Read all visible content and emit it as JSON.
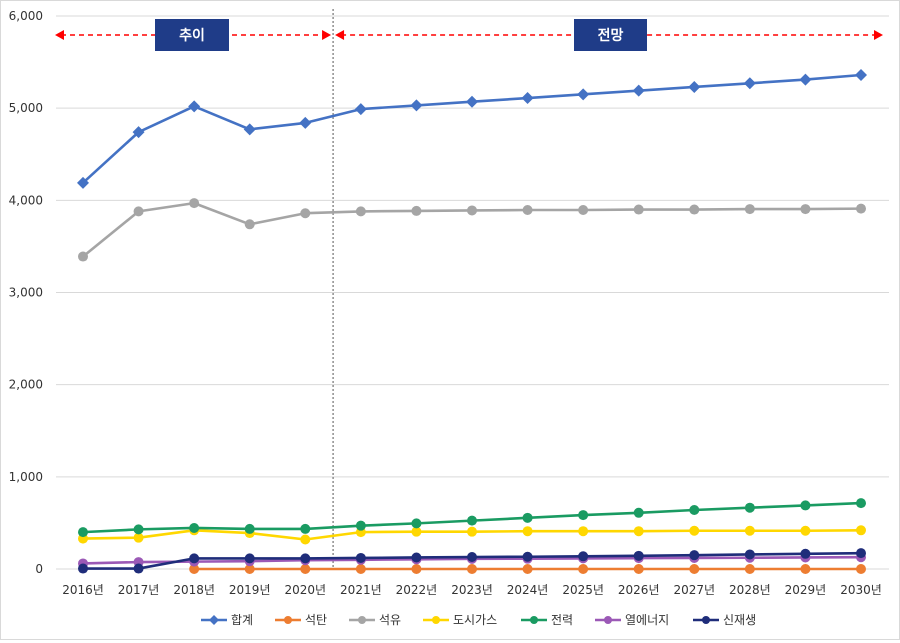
{
  "chart_data": {
    "type": "line",
    "title": "",
    "xlabel": "",
    "ylabel": "",
    "ylim": [
      0,
      6000
    ],
    "y_ticks": [
      "0",
      "1,000",
      "2,000",
      "3,000",
      "4,000",
      "5,000",
      "6,000"
    ],
    "y_tick_values": [
      0,
      1000,
      2000,
      3000,
      4000,
      5000,
      6000
    ],
    "categories": [
      "2016년",
      "2017년",
      "2018년",
      "2019년",
      "2020년",
      "2021년",
      "2022년",
      "2023년",
      "2024년",
      "2025년",
      "2026년",
      "2027년",
      "2028년",
      "2029년",
      "2030년"
    ],
    "grid": "horizontal",
    "legend_position": "bottom",
    "divider_after_category": "2020년",
    "annotations": {
      "trend_label": "추이",
      "forecast_label": "전망",
      "arrow_color": "#ff0000",
      "banner_color": "#1f3c88"
    },
    "series": [
      {
        "name": "합계",
        "color": "#4472c4",
        "marker": "diamond",
        "values": [
          4190,
          4740,
          5020,
          4770,
          4840,
          4990,
          5030,
          5070,
          5110,
          5150,
          5190,
          5230,
          5270,
          5310,
          5360
        ]
      },
      {
        "name": "석탄",
        "color": "#ed7d31",
        "marker": "circle",
        "values": [
          null,
          null,
          0,
          0,
          0,
          0,
          0,
          0,
          0,
          0,
          0,
          0,
          0,
          0,
          0
        ]
      },
      {
        "name": "석유",
        "color": "#a5a5a5",
        "marker": "circle",
        "values": [
          3390,
          3880,
          3970,
          3740,
          3860,
          3880,
          3885,
          3890,
          3895,
          3895,
          3900,
          3900,
          3905,
          3905,
          3910
        ]
      },
      {
        "name": "도시가스",
        "color": "#ffd700",
        "marker": "circle",
        "values": [
          330,
          340,
          420,
          390,
          320,
          400,
          405,
          405,
          410,
          410,
          410,
          415,
          415,
          415,
          420
        ]
      },
      {
        "name": "전력",
        "color": "#1a9b62",
        "marker": "circle",
        "values": [
          400,
          430,
          445,
          435,
          435,
          470,
          495,
          525,
          555,
          585,
          610,
          640,
          665,
          690,
          715
        ]
      },
      {
        "name": "열에너지",
        "color": "#9b59b6",
        "marker": "circle",
        "values": [
          60,
          75,
          80,
          85,
          95,
          100,
          105,
          110,
          112,
          115,
          118,
          120,
          122,
          125,
          128
        ]
      },
      {
        "name": "신재생",
        "color": "#1f2d7a",
        "marker": "circle",
        "values": [
          5,
          5,
          115,
          115,
          115,
          120,
          125,
          130,
          133,
          138,
          143,
          150,
          158,
          165,
          172
        ]
      }
    ]
  }
}
